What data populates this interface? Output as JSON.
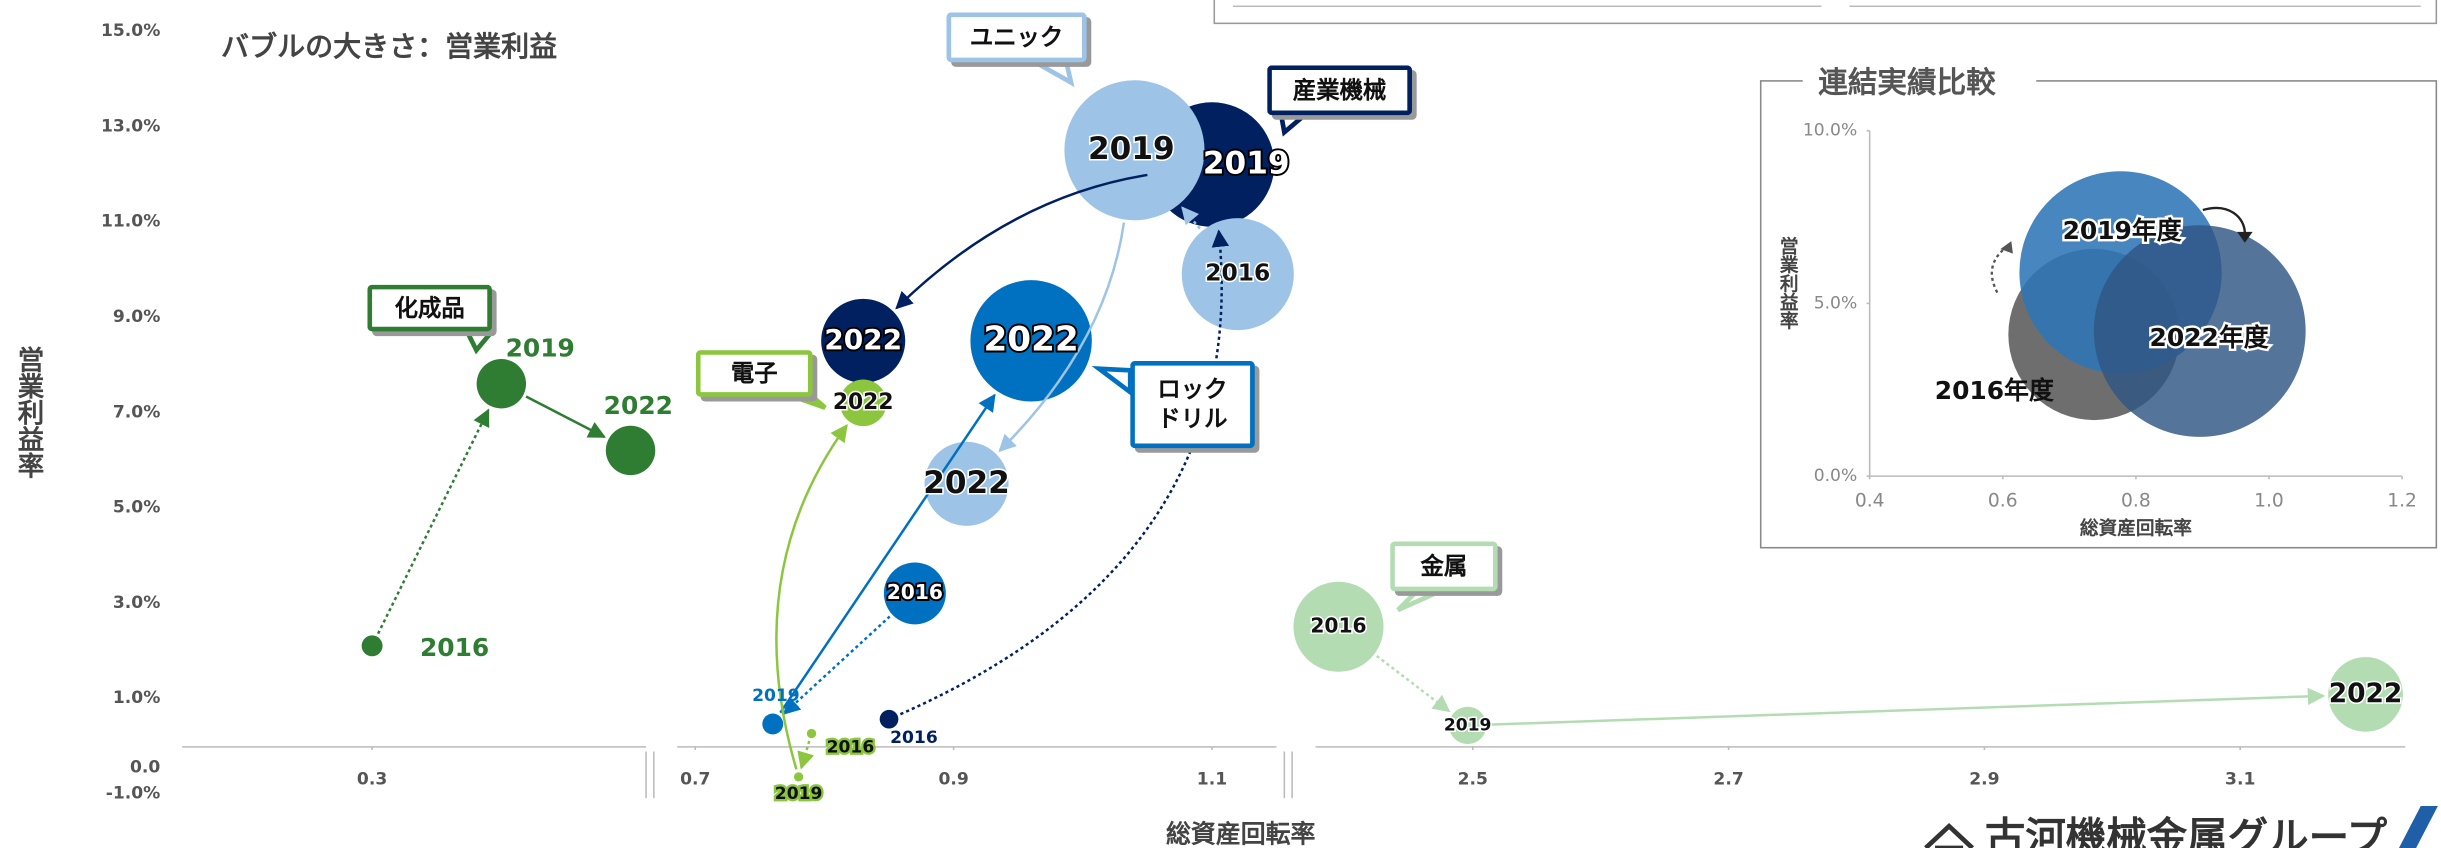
{
  "chart_data": [
    {
      "type": "bubble",
      "title": "バブルの大きさ：営業利益",
      "x_label": "総資産回転率",
      "y_label": "営業利益率",
      "years": [
        "2016",
        "2019",
        "2022"
      ],
      "ylim": [
        -1,
        15
      ],
      "yticks": [
        {
          "value": -1,
          "label": "-1.0%"
        },
        {
          "value": 0,
          "label": "0.0"
        },
        {
          "value": 1,
          "label": "1.0%"
        },
        {
          "value": 3,
          "label": "3.0%"
        },
        {
          "value": 5,
          "label": "5.0%"
        },
        {
          "value": 7,
          "label": "7.0%"
        },
        {
          "value": 9,
          "label": "9.0%"
        },
        {
          "value": 11,
          "label": "11.0%"
        },
        {
          "value": 13,
          "label": "13.0%"
        },
        {
          "value": 15,
          "label": "15.0%"
        }
      ],
      "x_segments": [
        {
          "xlim": [
            0.153,
            0.512
          ],
          "xticks": [
            0.3
          ]
        },
        {
          "xlim": [
            0.686,
            1.15
          ],
          "xticks": [
            0.7,
            0.9,
            1.1
          ]
        },
        {
          "xlim": [
            2.377,
            3.229
          ],
          "xticks": [
            2.5,
            2.7,
            2.9,
            3.1
          ]
        }
      ],
      "series": [
        {
          "name": "産業機械",
          "color": "#002060",
          "x": [
            0.85,
            1.1,
            0.83
          ],
          "y": [
            0.56,
            12.2,
            8.5
          ],
          "size": [
            4,
            178,
            81
          ]
        },
        {
          "name": "ロック\nドリル",
          "color": "#0070c0",
          "x": [
            0.87,
            0.76,
            0.96
          ],
          "y": [
            3.2,
            0.46,
            8.5
          ],
          "size": [
            44,
            5,
            169
          ]
        },
        {
          "name": "ユニック",
          "color": "#9dc3e6",
          "x": [
            1.12,
            1.04,
            0.91
          ],
          "y": [
            9.9,
            12.5,
            5.5
          ],
          "size": [
            144,
            225,
            81
          ]
        },
        {
          "name": "化成品",
          "color": "#2e7d32",
          "x": [
            0.3,
            0.4,
            0.5
          ],
          "y": [
            2.1,
            7.6,
            6.2
          ],
          "size": [
            5,
            28,
            28
          ]
        },
        {
          "name": "電子",
          "color": "#8cc63f",
          "x": [
            0.79,
            0.78,
            0.83
          ],
          "y": [
            0.26,
            -0.65,
            7.2
          ],
          "size": [
            1,
            1,
            25
          ]
        },
        {
          "name": "金属",
          "color": "#b3dcb3",
          "x": [
            2.395,
            2.496,
            3.198
          ],
          "y": [
            2.5,
            0.43,
            1.08
          ],
          "size": [
            93,
            16,
            64
          ]
        }
      ]
    },
    {
      "type": "bubble",
      "title": "連結実績比較",
      "x_label": "総資産回転率",
      "y_label": "営業利益率",
      "xlim": [
        0.4,
        1.2
      ],
      "xticks": [
        0.4,
        0.6,
        0.8,
        {
          "value": 1.0,
          "label": "1.0"
        },
        1.2
      ],
      "ylim": [
        0,
        10
      ],
      "yticks": [
        {
          "value": 0,
          "label": "0.0%"
        },
        {
          "value": 5,
          "label": "5.0%"
        },
        {
          "value": 10,
          "label": "10.0%"
        }
      ],
      "series": [
        {
          "name": "2016年度",
          "color": "#6e6e6e",
          "x": [
            0.737
          ],
          "y": [
            4.1
          ],
          "size": [
            336
          ]
        },
        {
          "name": "2019年度",
          "color": "#2e75b6",
          "x": [
            0.777
          ],
          "y": [
            5.9
          ],
          "size": [
            469
          ]
        },
        {
          "name": "2022年度",
          "color": "#2f5684",
          "x": [
            0.896
          ],
          "y": [
            4.2
          ],
          "size": [
            514
          ]
        }
      ]
    }
  ],
  "logo": "古河機械金属グループ"
}
